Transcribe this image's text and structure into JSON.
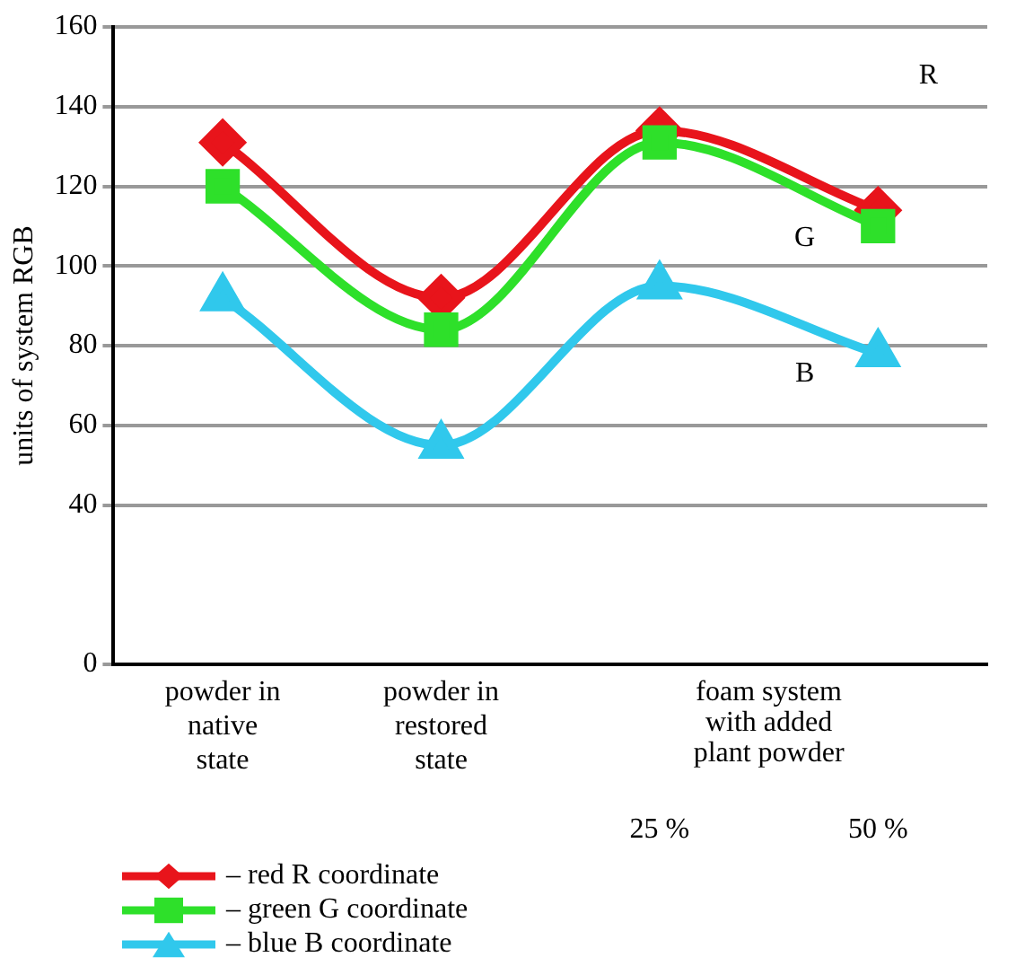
{
  "chart_data": {
    "type": "line",
    "ylabel": "units of system RGB",
    "categories": [
      "powder in native state",
      "powder in restored state",
      "25 %",
      "50 %"
    ],
    "series": [
      {
        "name": "– red R coordinate",
        "color": "#e8141b",
        "marker": "diamond",
        "values": [
          131,
          92,
          134,
          114
        ]
      },
      {
        "name": "– green G coordinate",
        "color": "#2ee02a",
        "marker": "square",
        "values": [
          120,
          84,
          131,
          110
        ]
      },
      {
        "name": "– blue B coordinate",
        "color": "#30c8ec",
        "marker": "triangle",
        "values": [
          92,
          55,
          95,
          78
        ]
      }
    ],
    "ylim": [
      0,
      160
    ],
    "yticks": [
      0,
      40,
      60,
      80,
      100,
      120,
      140,
      160
    ],
    "grid": "y",
    "legend": "bottom left",
    "annotations": [
      {
        "text": "foam system with added plant powder"
      },
      "R",
      "G",
      "B"
    ]
  }
}
